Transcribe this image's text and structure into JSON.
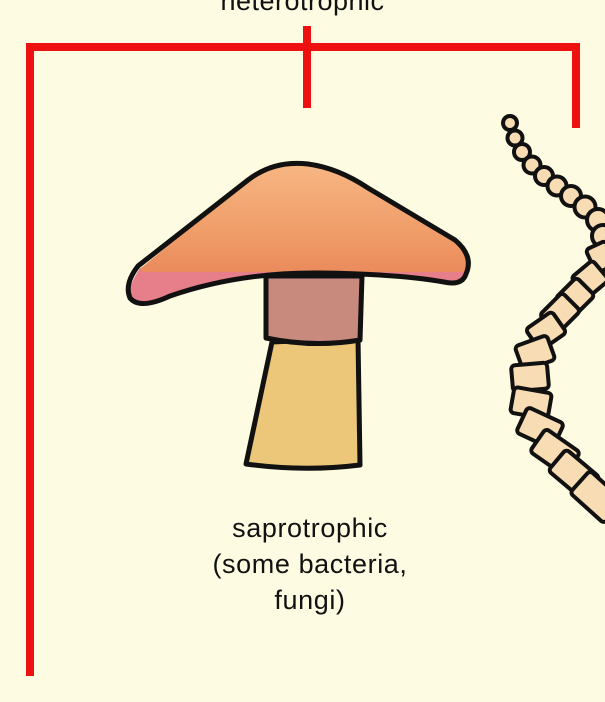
{
  "heading": "heterotrophic",
  "caption": {
    "line1": "saprotrophic",
    "line2": "(some bacteria,",
    "line3": "fungi)"
  },
  "colors": {
    "background": "#fdfbe1",
    "bracket": "#ee1111",
    "cap_top": "#f3a06a",
    "cap_bottom": "#e77f8a",
    "stem_upper": "#c98a7e",
    "stem_lower": "#ecc77a",
    "chain": "#f7dcb4",
    "outline": "#111111"
  },
  "icons": [
    "mushroom-icon",
    "filament-chain-icon"
  ]
}
